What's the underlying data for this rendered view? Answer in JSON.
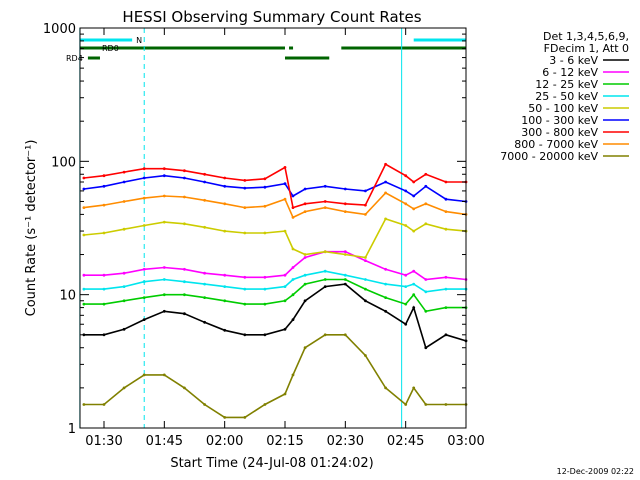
{
  "chart_data": {
    "type": "line",
    "title": "HESSI Observing Summary Count Rates",
    "xlabel": "Start Time (24-Jul-08 01:24:02)",
    "ylabel": "Count Rate (s⁻¹ detector⁻¹)",
    "ylim": [
      1,
      1000
    ],
    "yscale": "log",
    "xlim": [
      "01:24:02",
      "03:00"
    ],
    "x_ticks": [
      "01:30",
      "01:45",
      "02:00",
      "02:15",
      "02:30",
      "02:45",
      "03:00"
    ],
    "y_ticks": [
      "1",
      "10",
      "100",
      "1000"
    ],
    "grid": false,
    "legend_placement": "right",
    "legend_header": [
      "Det 1,3,4,5,6,9,",
      "FDecim 1, Att 0"
    ],
    "timestamp": "12-Dec-2009 02:22",
    "flags": [
      {
        "name": "N",
        "color": "#00e5ee",
        "segments": [
          [
            "01:24",
            "01:37"
          ],
          [
            "02:47",
            "03:00"
          ]
        ]
      },
      {
        "name": "RD0",
        "color": "#006400",
        "segments": [
          [
            "01:24",
            "02:15"
          ],
          [
            "02:16",
            "02:17"
          ],
          [
            "02:29",
            "03:00"
          ]
        ]
      },
      {
        "name": "RD4",
        "color": "#006400",
        "segments": [
          [
            "01:26",
            "01:29"
          ],
          [
            "02:15",
            "02:26"
          ]
        ]
      }
    ],
    "vertical_markers": [
      {
        "time": "01:24",
        "style": "solid",
        "color": "#00e5ee"
      },
      {
        "time": "01:40",
        "style": "dashed",
        "color": "#00e5ee"
      },
      {
        "time": "02:44",
        "style": "solid",
        "color": "#00e5ee"
      },
      {
        "time": "03:00",
        "style": "dashed",
        "color": "#00e5ee"
      }
    ],
    "x": [
      "01:25",
      "01:30",
      "01:35",
      "01:40",
      "01:45",
      "01:50",
      "01:55",
      "02:00",
      "02:05",
      "02:10",
      "02:15",
      "02:17",
      "02:20",
      "02:25",
      "02:30",
      "02:35",
      "02:40",
      "02:45",
      "02:47",
      "02:50",
      "02:55",
      "03:00"
    ],
    "series": [
      {
        "name": "3 - 6 keV",
        "color": "#000000",
        "values": [
          5,
          5,
          5.5,
          6.5,
          7.5,
          7.2,
          6.2,
          5.4,
          5,
          5,
          5.5,
          6.5,
          9,
          11.5,
          12,
          9,
          7.5,
          6,
          8,
          4,
          5,
          4.5
        ]
      },
      {
        "name": "6 - 12 keV",
        "color": "#ff00ff",
        "values": [
          14,
          14,
          14.5,
          15.5,
          16,
          15.5,
          14.5,
          14,
          13.5,
          13.5,
          14,
          16,
          19,
          21,
          21,
          18,
          15.5,
          14,
          15,
          13,
          13.5,
          13
        ]
      },
      {
        "name": "12 - 25 keV",
        "color": "#00cc00",
        "values": [
          8.5,
          8.5,
          9,
          9.5,
          10,
          10,
          9.5,
          9,
          8.5,
          8.5,
          9,
          10,
          12,
          13,
          13,
          11,
          9.5,
          8.5,
          10,
          7.5,
          8,
          8
        ]
      },
      {
        "name": "25 - 50 keV",
        "color": "#00e5ee",
        "values": [
          11,
          11,
          11.5,
          12.5,
          13,
          12.5,
          12,
          11.5,
          11,
          11,
          11.5,
          13,
          14,
          15,
          14,
          13,
          12,
          11.5,
          12,
          10.5,
          11,
          11
        ]
      },
      {
        "name": "50 - 100 keV",
        "color": "#cccc00",
        "values": [
          28,
          29,
          31,
          33,
          35,
          34,
          32,
          30,
          29,
          29,
          30,
          22,
          20,
          21,
          20,
          19,
          37,
          33,
          30,
          34,
          31,
          30
        ]
      },
      {
        "name": "100 - 300 keV",
        "color": "#0000ff",
        "values": [
          62,
          65,
          70,
          75,
          78,
          75,
          70,
          65,
          63,
          64,
          68,
          55,
          62,
          65,
          62,
          60,
          70,
          60,
          55,
          65,
          52,
          50
        ]
      },
      {
        "name": "300 - 800 keV",
        "color": "#ff0000",
        "values": [
          75,
          78,
          83,
          88,
          88,
          85,
          80,
          75,
          72,
          74,
          90,
          45,
          48,
          50,
          48,
          47,
          95,
          78,
          70,
          80,
          70,
          70
        ]
      },
      {
        "name": "800 - 7000 keV",
        "color": "#ff8c00",
        "values": [
          45,
          47,
          50,
          53,
          55,
          54,
          51,
          48,
          45,
          46,
          52,
          38,
          42,
          45,
          42,
          40,
          58,
          48,
          44,
          48,
          42,
          40
        ]
      },
      {
        "name": "7000 - 20000 keV",
        "color": "#808000",
        "values": [
          1.5,
          1.5,
          2,
          2.5,
          2.5,
          2,
          1.5,
          1.2,
          1.2,
          1.5,
          1.8,
          2.5,
          4,
          5,
          5,
          3.5,
          2,
          1.5,
          2,
          1.5,
          1.5,
          1.5
        ]
      }
    ]
  }
}
